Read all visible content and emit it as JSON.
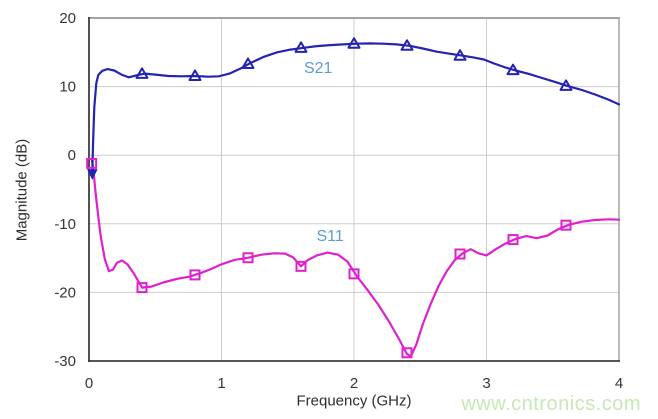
{
  "page": {
    "background": "#ffffff"
  },
  "watermark": {
    "text": "www.cntronics.com",
    "color": "#c5e8b4"
  },
  "chart_data": {
    "type": "line",
    "title": "",
    "xlabel": "Frequency (GHz)",
    "ylabel": "Magnitude (dB)",
    "xlim": [
      0,
      4
    ],
    "ylim": [
      -30,
      20
    ],
    "xticks": [
      0,
      1,
      2,
      3,
      4
    ],
    "yticks": [
      20,
      10,
      0,
      -10,
      -20,
      -30
    ],
    "grid": true,
    "legend_position": "none",
    "colors": {
      "grid": "#cdcdcd",
      "border_top_right": "#a3a3a3",
      "axis": "#3f3f3f",
      "tick_text": "#363636",
      "annotation_text": "#5b9bd5",
      "watermark": "#c5e8b4"
    },
    "annotations": [
      {
        "text": "S21",
        "x": 1.73,
        "y": 12.5
      },
      {
        "text": "S11",
        "x": 1.82,
        "y": -11.9
      }
    ],
    "series": [
      {
        "name": "S11",
        "color": "#de21cf",
        "marker": "square",
        "points": [
          [
            0.02,
            -0.5
          ],
          [
            0.035,
            -2.5
          ],
          [
            0.05,
            -5.5
          ],
          [
            0.07,
            -9
          ],
          [
            0.09,
            -12
          ],
          [
            0.12,
            -15.2
          ],
          [
            0.15,
            -16.9
          ],
          [
            0.18,
            -16.7
          ],
          [
            0.21,
            -15.7
          ],
          [
            0.25,
            -15.35
          ],
          [
            0.29,
            -15.9
          ],
          [
            0.34,
            -17.3
          ],
          [
            0.4,
            -19.3
          ],
          [
            0.47,
            -19.15
          ],
          [
            0.56,
            -18.55
          ],
          [
            0.66,
            -18.05
          ],
          [
            0.76,
            -17.7
          ],
          [
            0.84,
            -17.2
          ],
          [
            0.92,
            -16.6
          ],
          [
            1.0,
            -15.9
          ],
          [
            1.1,
            -15.25
          ],
          [
            1.2,
            -14.95
          ],
          [
            1.3,
            -14.5
          ],
          [
            1.4,
            -14.3
          ],
          [
            1.48,
            -14.35
          ],
          [
            1.54,
            -14.9
          ],
          [
            1.6,
            -16.2
          ],
          [
            1.65,
            -15.3
          ],
          [
            1.72,
            -14.6
          ],
          [
            1.8,
            -14.2
          ],
          [
            1.88,
            -14.5
          ],
          [
            1.95,
            -15.5
          ],
          [
            2.02,
            -17.6
          ],
          [
            2.1,
            -19.6
          ],
          [
            2.18,
            -21.7
          ],
          [
            2.26,
            -24.1
          ],
          [
            2.34,
            -26.8
          ],
          [
            2.4,
            -29.0
          ],
          [
            2.43,
            -29.3
          ],
          [
            2.47,
            -27.6
          ],
          [
            2.52,
            -24.6
          ],
          [
            2.58,
            -21.6
          ],
          [
            2.64,
            -19.0
          ],
          [
            2.7,
            -16.9
          ],
          [
            2.76,
            -15.3
          ],
          [
            2.82,
            -14.3
          ],
          [
            2.88,
            -13.7
          ],
          [
            2.94,
            -14.3
          ],
          [
            3.0,
            -14.6
          ],
          [
            3.07,
            -13.7
          ],
          [
            3.14,
            -12.9
          ],
          [
            3.22,
            -12.2
          ],
          [
            3.3,
            -11.8
          ],
          [
            3.38,
            -12.1
          ],
          [
            3.46,
            -11.7
          ],
          [
            3.54,
            -10.8
          ],
          [
            3.62,
            -10.15
          ],
          [
            3.72,
            -9.7
          ],
          [
            3.82,
            -9.45
          ],
          [
            3.92,
            -9.35
          ],
          [
            4.0,
            -9.4
          ]
        ],
        "markers": [
          [
            0.02,
            -1.2
          ],
          [
            0.4,
            -19.3
          ],
          [
            0.8,
            -17.45
          ],
          [
            1.2,
            -14.95
          ],
          [
            1.6,
            -16.2
          ],
          [
            2.0,
            -17.3
          ],
          [
            2.4,
            -28.8
          ],
          [
            2.8,
            -14.4
          ],
          [
            3.2,
            -12.3
          ],
          [
            3.6,
            -10.2
          ]
        ]
      },
      {
        "name": "S21",
        "color": "#2424b2",
        "marker": "triangle",
        "start_cap": {
          "x": 0.025,
          "y": -2.7,
          "shape": "triangle-down"
        },
        "points": [
          [
            0.025,
            -2.6
          ],
          [
            0.03,
            1.5
          ],
          [
            0.04,
            7
          ],
          [
            0.055,
            10.5
          ],
          [
            0.07,
            11.7
          ],
          [
            0.1,
            12.3
          ],
          [
            0.14,
            12.55
          ],
          [
            0.19,
            12.35
          ],
          [
            0.25,
            11.7
          ],
          [
            0.3,
            11.35
          ],
          [
            0.36,
            11.65
          ],
          [
            0.42,
            11.9
          ],
          [
            0.5,
            11.75
          ],
          [
            0.6,
            11.55
          ],
          [
            0.7,
            11.5
          ],
          [
            0.8,
            11.55
          ],
          [
            0.9,
            11.45
          ],
          [
            0.98,
            11.5
          ],
          [
            1.06,
            11.9
          ],
          [
            1.14,
            12.6
          ],
          [
            1.22,
            13.45
          ],
          [
            1.32,
            14.35
          ],
          [
            1.42,
            15.0
          ],
          [
            1.52,
            15.4
          ],
          [
            1.62,
            15.65
          ],
          [
            1.72,
            15.9
          ],
          [
            1.82,
            16.05
          ],
          [
            1.92,
            16.15
          ],
          [
            2.02,
            16.25
          ],
          [
            2.12,
            16.3
          ],
          [
            2.22,
            16.25
          ],
          [
            2.32,
            16.15
          ],
          [
            2.42,
            15.95
          ],
          [
            2.52,
            15.55
          ],
          [
            2.62,
            15.1
          ],
          [
            2.72,
            14.8
          ],
          [
            2.82,
            14.5
          ],
          [
            2.9,
            14.25
          ],
          [
            2.98,
            13.95
          ],
          [
            3.06,
            13.35
          ],
          [
            3.14,
            12.8
          ],
          [
            3.22,
            12.35
          ],
          [
            3.32,
            11.85
          ],
          [
            3.42,
            11.25
          ],
          [
            3.52,
            10.65
          ],
          [
            3.62,
            10.05
          ],
          [
            3.72,
            9.5
          ],
          [
            3.82,
            8.85
          ],
          [
            3.92,
            8.1
          ],
          [
            4.0,
            7.4
          ]
        ],
        "markers": [
          [
            0.4,
            11.85
          ],
          [
            0.8,
            11.55
          ],
          [
            1.2,
            13.3
          ],
          [
            1.6,
            15.65
          ],
          [
            2.0,
            16.25
          ],
          [
            2.4,
            15.95
          ],
          [
            2.8,
            14.5
          ],
          [
            3.2,
            12.4
          ],
          [
            3.6,
            10.1
          ]
        ]
      }
    ]
  }
}
